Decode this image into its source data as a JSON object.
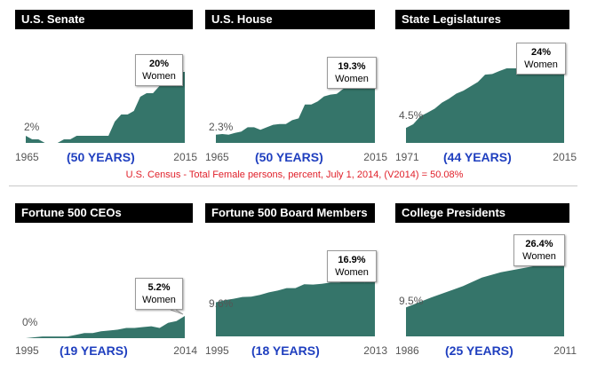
{
  "colors": {
    "area_fill": "#35756a",
    "title_bg": "#000000",
    "years_text": "#1f3fbf",
    "note_text": "#e0202a"
  },
  "census_note": "U.S. Census - Total Female persons, percent, July 1, 2014, (V2014)  = 50.08%",
  "chart_data": [
    {
      "type": "area",
      "title": "U.S. Senate",
      "x": [
        1965,
        1967,
        1969,
        1971,
        1973,
        1975,
        1977,
        1979,
        1981,
        1983,
        1985,
        1987,
        1989,
        1991,
        1993,
        1995,
        1997,
        1999,
        2001,
        2003,
        2005,
        2007,
        2009,
        2011,
        2013,
        2015
      ],
      "values": [
        2,
        1,
        1,
        0,
        0,
        0,
        1,
        1,
        2,
        2,
        2,
        2,
        2,
        2,
        6,
        8,
        8,
        9,
        13,
        14,
        14,
        16,
        17,
        17,
        20,
        20
      ],
      "xlim": [
        1965,
        2015
      ],
      "ylim": [
        0,
        30
      ],
      "start_label": "2%",
      "end_label": "20%",
      "end_unit": "Women",
      "start_year": "1965",
      "end_year": "2015",
      "years_span": "(50 YEARS)"
    },
    {
      "type": "area",
      "title": "U.S. House",
      "x": [
        1965,
        1967,
        1969,
        1971,
        1973,
        1975,
        1977,
        1979,
        1981,
        1983,
        1985,
        1987,
        1989,
        1991,
        1993,
        1995,
        1997,
        1999,
        2001,
        2003,
        2005,
        2007,
        2009,
        2011,
        2013,
        2015
      ],
      "values": [
        2.3,
        2.5,
        2.3,
        2.8,
        3.2,
        4.4,
        4.4,
        3.7,
        4.4,
        5.1,
        5.3,
        5.3,
        6.4,
        6.9,
        10.8,
        10.8,
        11.7,
        13.1,
        13.6,
        13.8,
        15.2,
        16.3,
        17,
        16.8,
        18.3,
        19.3
      ],
      "xlim": [
        1965,
        2015
      ],
      "ylim": [
        0,
        30
      ],
      "start_label": "2.3%",
      "end_label": "19.3%",
      "end_unit": "Women",
      "start_year": "1965",
      "end_year": "2015",
      "years_span": "(50 YEARS)"
    },
    {
      "type": "area",
      "title": "State Legislatures",
      "x": [
        1971,
        1973,
        1975,
        1977,
        1979,
        1981,
        1983,
        1985,
        1987,
        1989,
        1991,
        1993,
        1995,
        1997,
        1999,
        2001,
        2003,
        2005,
        2007,
        2009,
        2010,
        2011,
        2013,
        2015
      ],
      "values": [
        4.5,
        5.6,
        8,
        9.1,
        10.3,
        12.1,
        13.3,
        14.8,
        15.7,
        17,
        18.3,
        20.5,
        20.7,
        21.6,
        22.4,
        22.4,
        22.4,
        22.7,
        23.5,
        24.3,
        24.5,
        23.7,
        24.2,
        24
      ],
      "xlim": [
        1971,
        2015
      ],
      "ylim": [
        0,
        32
      ],
      "start_label": "4.5%",
      "end_label": "24%",
      "end_unit": "Women",
      "start_year": "1971",
      "end_year": "2015",
      "years_span": "(44 YEARS)"
    },
    {
      "type": "area",
      "title": "Fortune 500 CEOs",
      "x": [
        1995,
        1996,
        1997,
        1998,
        1999,
        2000,
        2001,
        2002,
        2003,
        2004,
        2005,
        2006,
        2007,
        2008,
        2009,
        2010,
        2011,
        2012,
        2013,
        2014
      ],
      "values": [
        0,
        0.2,
        0.4,
        0.4,
        0.4,
        0.4,
        0.8,
        1.2,
        1.2,
        1.6,
        1.8,
        2,
        2.4,
        2.4,
        2.6,
        2.8,
        2.4,
        3.6,
        4,
        5.2
      ],
      "xlim": [
        1995,
        2014
      ],
      "ylim": [
        0,
        25
      ],
      "start_label": "0%",
      "end_label": "5.2%",
      "end_unit": "Women",
      "start_year": "1995",
      "end_year": "2014",
      "years_span": "(19 YEARS)"
    },
    {
      "type": "area",
      "title": "Fortune 500 Board Members",
      "x": [
        1995,
        1996,
        1997,
        1998,
        1999,
        2000,
        2001,
        2002,
        2003,
        2004,
        2005,
        2006,
        2007,
        2008,
        2009,
        2010,
        2011,
        2012,
        2013
      ],
      "values": [
        9.6,
        10.2,
        10.6,
        11.1,
        11.2,
        11.7,
        12.4,
        12.9,
        13.6,
        13.6,
        14.7,
        14.6,
        14.8,
        15.2,
        15.2,
        15.7,
        16.1,
        16.6,
        16.9
      ],
      "xlim": [
        1995,
        2013
      ],
      "ylim": [
        0,
        30
      ],
      "start_label": "9.6%",
      "end_label": "16.9%",
      "end_unit": "Women",
      "start_year": "1995",
      "end_year": "2013",
      "years_span": "(18 YEARS)"
    },
    {
      "type": "area",
      "title": "College Presidents",
      "x": [
        1986,
        1990,
        1995,
        1998,
        2001,
        2006,
        2011
      ],
      "values": [
        9.5,
        12.8,
        16.5,
        19.3,
        21.1,
        23,
        26.4
      ],
      "xlim": [
        1986,
        2011
      ],
      "ylim": [
        0,
        35
      ],
      "start_label": "9.5%",
      "end_label": "26.4%",
      "end_unit": "Women",
      "start_year": "1986",
      "end_year": "2011",
      "years_span": "(25 YEARS)"
    }
  ]
}
